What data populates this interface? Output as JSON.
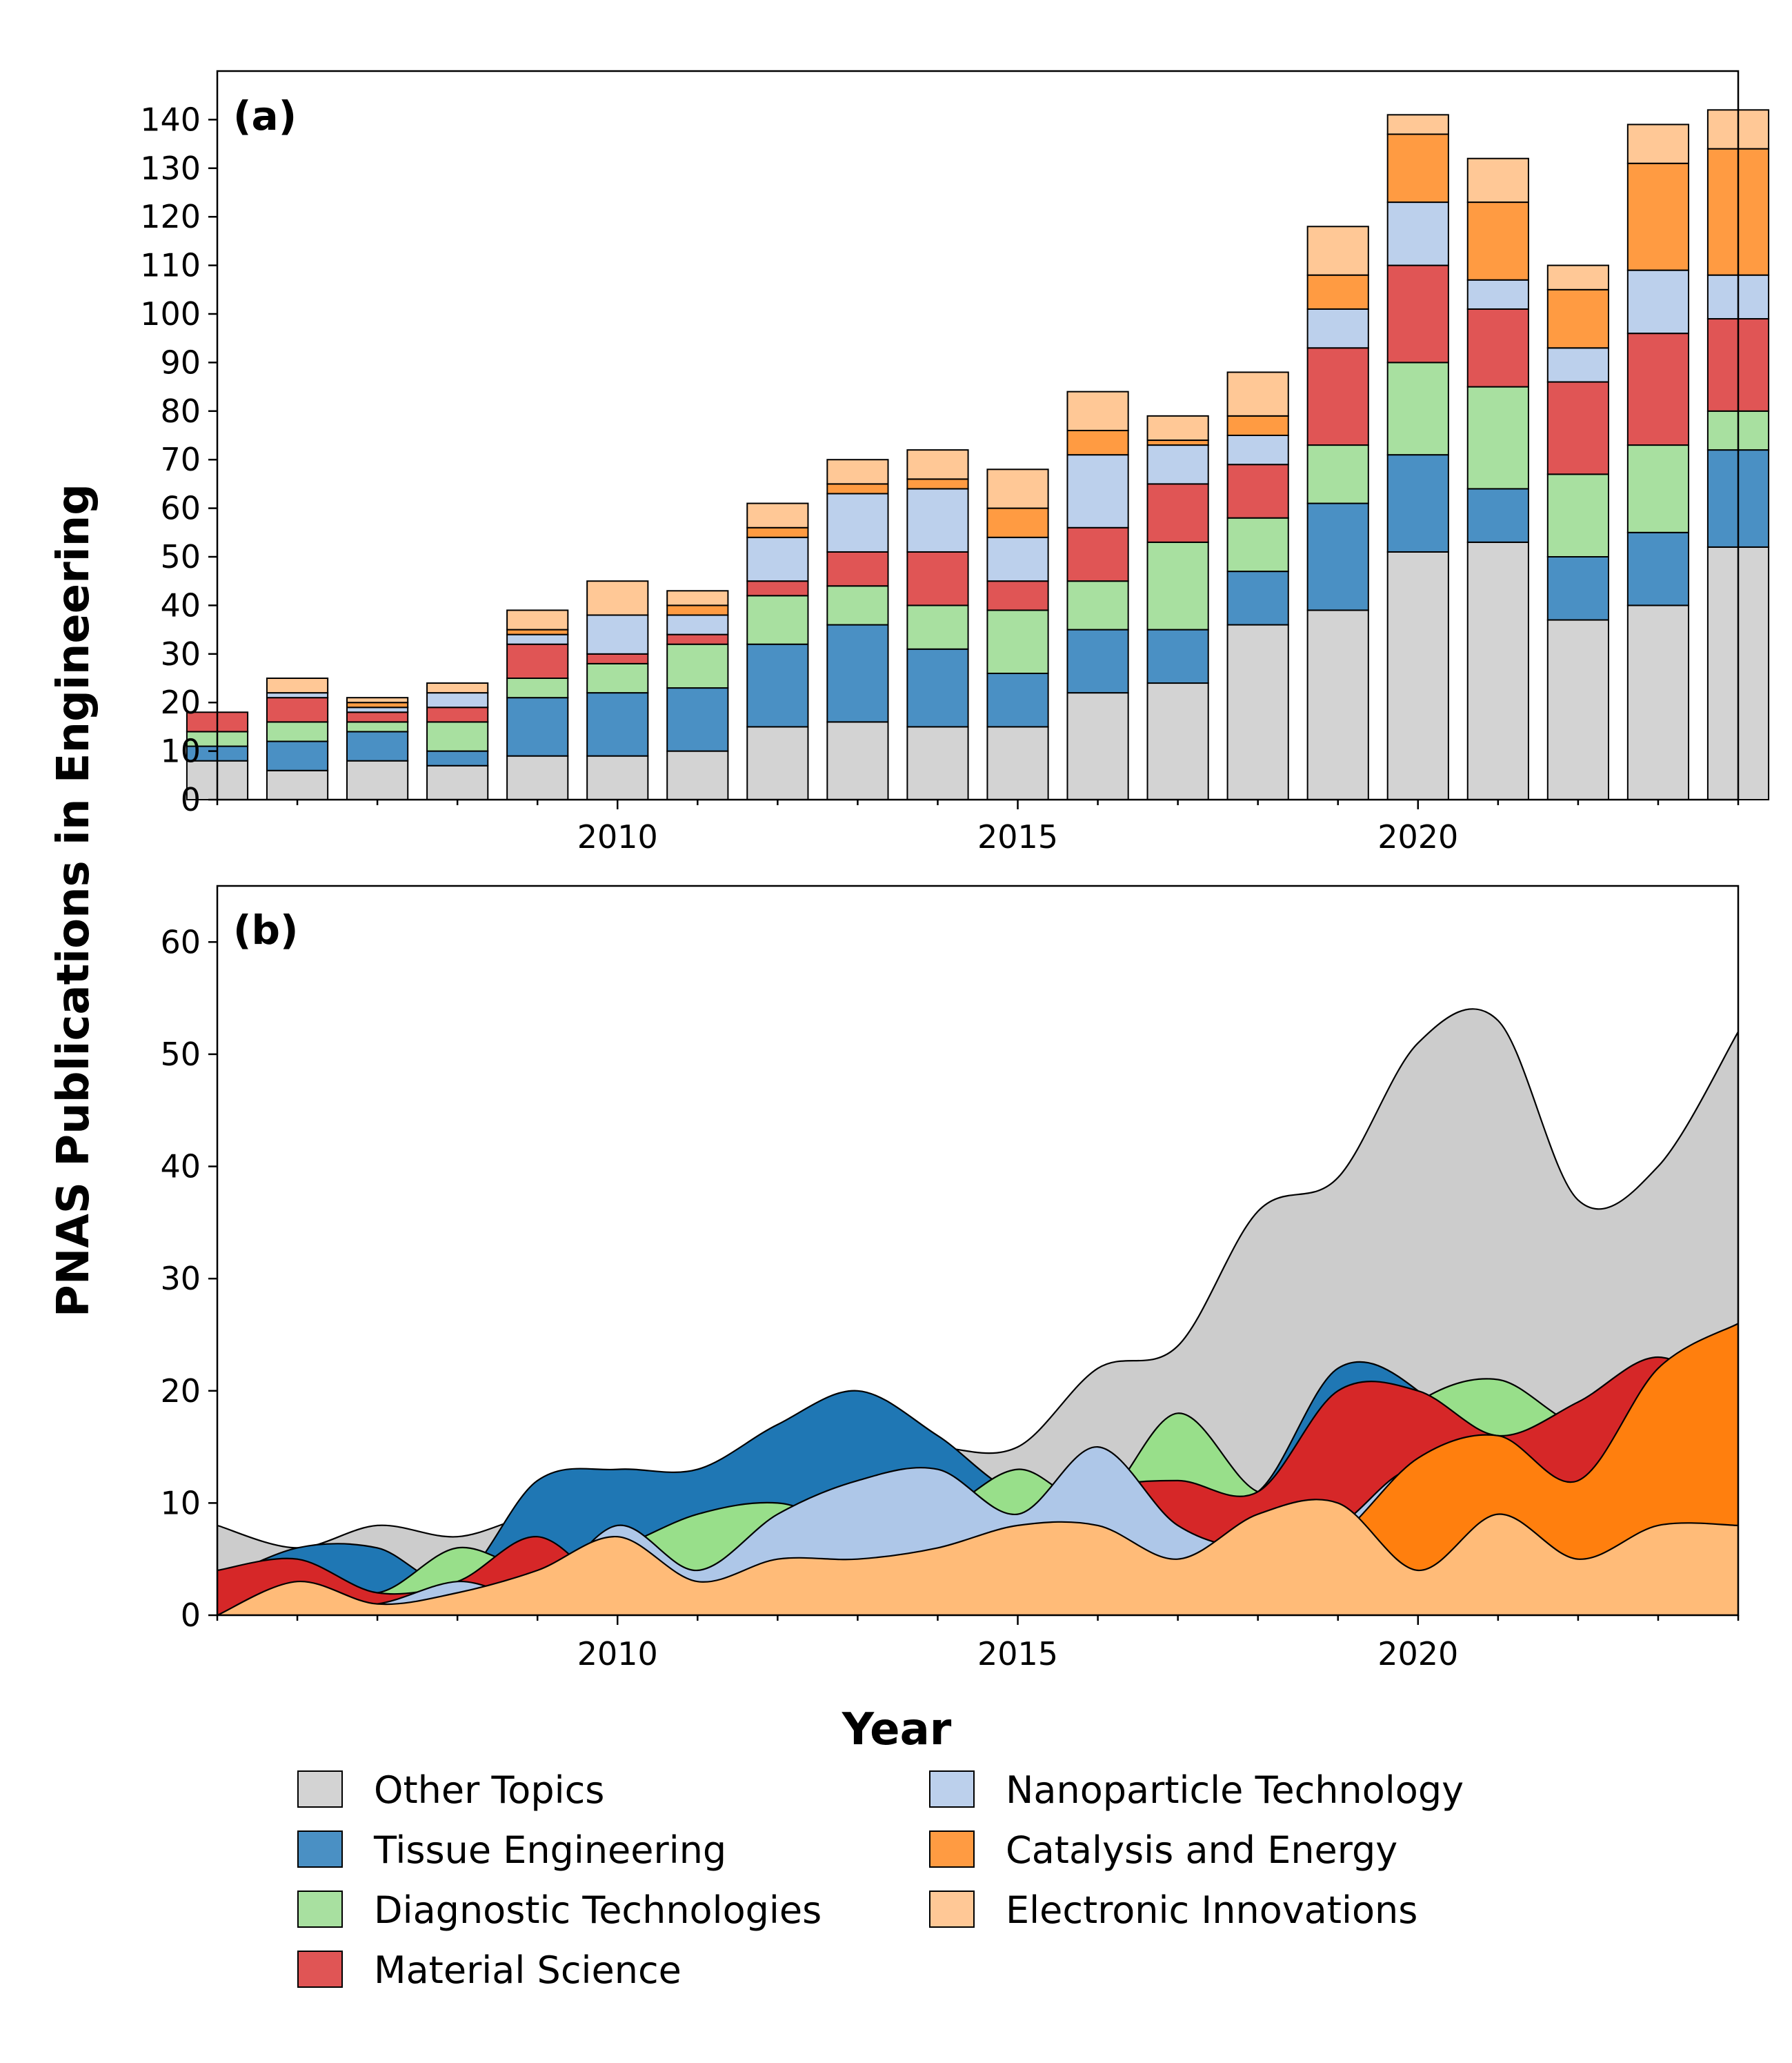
{
  "figure": {
    "ylabel": "PNAS Publications in Engineering",
    "xlabel": "Year"
  },
  "series_colors": {
    "Other Topics": "#d3d3d3",
    "Tissue Engineering": "#4a90c4",
    "Diagnostic Technologies": "#a8e0a0",
    "Material Science": "#e05555",
    "Nanoparticle Technology": "#bcd0ec",
    "Catalysis and Energy": "#ff9b42",
    "Electronic Innovations": "#ffc896"
  },
  "chart_data": [
    {
      "panel": "(a)",
      "type": "bar",
      "stacked": true,
      "categories": [
        2005,
        2006,
        2007,
        2008,
        2009,
        2010,
        2011,
        2012,
        2013,
        2014,
        2015,
        2016,
        2017,
        2018,
        2019,
        2020,
        2021,
        2022,
        2023,
        2024
      ],
      "xticks": [
        2010,
        2015,
        2020
      ],
      "yticks": [
        0,
        10,
        20,
        30,
        40,
        50,
        60,
        70,
        80,
        90,
        100,
        110,
        120,
        130,
        140
      ],
      "ylim": [
        0,
        150
      ],
      "xlim": [
        2005,
        2024
      ],
      "series": [
        {
          "name": "Other Topics",
          "values": [
            8,
            6,
            8,
            7,
            9,
            9,
            10,
            15,
            16,
            15,
            15,
            22,
            24,
            36,
            39,
            51,
            53,
            37,
            40,
            52
          ]
        },
        {
          "name": "Tissue Engineering",
          "values": [
            3,
            6,
            6,
            3,
            12,
            13,
            13,
            17,
            20,
            16,
            11,
            13,
            11,
            11,
            22,
            20,
            11,
            13,
            15,
            20
          ]
        },
        {
          "name": "Diagnostic Technologies",
          "values": [
            3,
            4,
            2,
            6,
            4,
            6,
            9,
            10,
            8,
            9,
            13,
            10,
            18,
            11,
            12,
            19,
            21,
            17,
            18,
            8
          ]
        },
        {
          "name": "Material Science",
          "values": [
            4,
            5,
            2,
            3,
            7,
            2,
            2,
            3,
            7,
            11,
            6,
            11,
            12,
            11,
            20,
            20,
            16,
            19,
            23,
            19
          ]
        },
        {
          "name": "Nanoparticle Technology",
          "values": [
            0,
            1,
            1,
            3,
            2,
            8,
            4,
            9,
            12,
            13,
            9,
            15,
            8,
            6,
            8,
            13,
            6,
            7,
            13,
            9
          ]
        },
        {
          "name": "Catalysis and Energy",
          "values": [
            0,
            0,
            1,
            0,
            1,
            0,
            2,
            2,
            2,
            2,
            6,
            5,
            1,
            4,
            7,
            14,
            16,
            12,
            22,
            26
          ]
        },
        {
          "name": "Electronic Innovations",
          "values": [
            0,
            3,
            1,
            2,
            4,
            7,
            3,
            5,
            5,
            6,
            8,
            8,
            5,
            9,
            10,
            4,
            9,
            5,
            8,
            8
          ]
        }
      ]
    },
    {
      "panel": "(b)",
      "type": "area",
      "style": "overlapping smoothed areas",
      "x": [
        2005,
        2006,
        2007,
        2008,
        2009,
        2010,
        2011,
        2012,
        2013,
        2014,
        2015,
        2016,
        2017,
        2018,
        2019,
        2020,
        2021,
        2022,
        2023,
        2024
      ],
      "xticks": [
        2010,
        2015,
        2020
      ],
      "yticks": [
        0,
        10,
        20,
        30,
        40,
        50,
        60
      ],
      "ylim": [
        0,
        65
      ],
      "xlim": [
        2005,
        2024
      ],
      "draw_order": [
        "Other Topics",
        "Tissue Engineering",
        "Diagnostic Technologies",
        "Material Science",
        "Nanoparticle Technology",
        "Catalysis and Energy",
        "Electronic Innovations"
      ]
    }
  ],
  "legend": {
    "placement": "bottom",
    "columns": 2,
    "entries": [
      "Other Topics",
      "Tissue Engineering",
      "Diagnostic Technologies",
      "Material Science",
      "Nanoparticle Technology",
      "Catalysis and Energy",
      "Electronic Innovations"
    ]
  }
}
